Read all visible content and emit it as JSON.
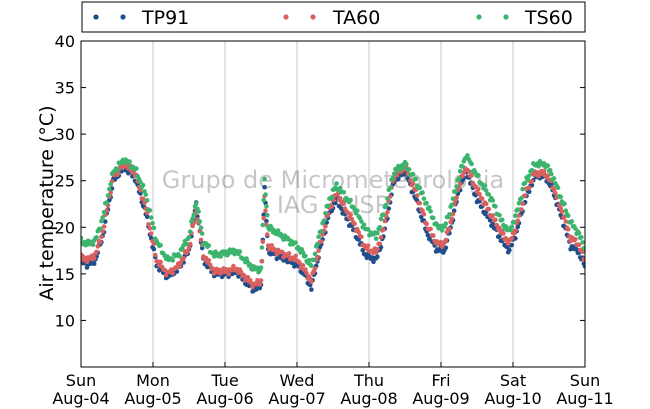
{
  "chart_data": {
    "type": "scatter",
    "ylabel": "Air temperature (°C)",
    "ylim": [
      5,
      40
    ],
    "yticks": [
      10,
      15,
      20,
      25,
      30,
      35,
      40
    ],
    "x_range_days": [
      0,
      7
    ],
    "xticks": [
      {
        "day": "Sun",
        "date": "Aug-04"
      },
      {
        "day": "Mon",
        "date": "Aug-05"
      },
      {
        "day": "Tue",
        "date": "Aug-06"
      },
      {
        "day": "Wed",
        "date": "Aug-07"
      },
      {
        "day": "Thu",
        "date": "Aug-08"
      },
      {
        "day": "Fri",
        "date": "Aug-09"
      },
      {
        "day": "Sat",
        "date": "Aug-10"
      },
      {
        "day": "Sun",
        "date": "Aug-11"
      }
    ],
    "grid": "vertical",
    "legend_position": "top",
    "watermark": [
      "Grupo de Micrometeorologia",
      "IAG / USP"
    ],
    "series": [
      {
        "name": "TP91",
        "color": "#1f4e8c",
        "points": [
          [
            0.0,
            16.3
          ],
          [
            0.1,
            16.0
          ],
          [
            0.2,
            16.5
          ],
          [
            0.3,
            19.0
          ],
          [
            0.45,
            25.0
          ],
          [
            0.6,
            26.5
          ],
          [
            0.75,
            25.3
          ],
          [
            0.9,
            21.5
          ],
          [
            1.05,
            16.0
          ],
          [
            1.2,
            14.7
          ],
          [
            1.35,
            15.5
          ],
          [
            1.5,
            17.5
          ],
          [
            1.6,
            22.5
          ],
          [
            1.7,
            16.5
          ],
          [
            1.85,
            15.0
          ],
          [
            2.05,
            15.0
          ],
          [
            2.15,
            15.3
          ],
          [
            2.3,
            14.0
          ],
          [
            2.4,
            13.3
          ],
          [
            2.5,
            13.8
          ],
          [
            2.55,
            24.0
          ],
          [
            2.6,
            17.5
          ],
          [
            2.7,
            17.0
          ],
          [
            2.85,
            16.5
          ],
          [
            3.0,
            16.0
          ],
          [
            3.1,
            15.0
          ],
          [
            3.2,
            13.5
          ],
          [
            3.3,
            17.0
          ],
          [
            3.45,
            21.5
          ],
          [
            3.55,
            23.0
          ],
          [
            3.65,
            21.5
          ],
          [
            3.8,
            19.5
          ],
          [
            3.95,
            17.0
          ],
          [
            4.1,
            16.5
          ],
          [
            4.2,
            19.0
          ],
          [
            4.35,
            25.0
          ],
          [
            4.5,
            26.0
          ],
          [
            4.65,
            23.0
          ],
          [
            4.8,
            19.5
          ],
          [
            4.95,
            17.5
          ],
          [
            5.05,
            17.5
          ],
          [
            5.15,
            20.5
          ],
          [
            5.25,
            24.0
          ],
          [
            5.35,
            26.0
          ],
          [
            5.5,
            23.0
          ],
          [
            5.7,
            20.5
          ],
          [
            5.85,
            18.5
          ],
          [
            5.95,
            17.5
          ],
          [
            6.05,
            19.5
          ],
          [
            6.15,
            22.5
          ],
          [
            6.3,
            25.5
          ],
          [
            6.45,
            25.5
          ],
          [
            6.55,
            24.0
          ],
          [
            6.7,
            20.5
          ],
          [
            6.8,
            18.0
          ],
          [
            6.9,
            17.5
          ],
          [
            7.0,
            15.8
          ]
        ]
      },
      {
        "name": "TA60",
        "color": "#d9605f",
        "points": [
          [
            0.0,
            16.8
          ],
          [
            0.1,
            16.5
          ],
          [
            0.2,
            17.0
          ],
          [
            0.3,
            19.5
          ],
          [
            0.45,
            25.5
          ],
          [
            0.6,
            26.8
          ],
          [
            0.75,
            25.8
          ],
          [
            0.9,
            22.0
          ],
          [
            1.05,
            16.5
          ],
          [
            1.2,
            15.0
          ],
          [
            1.35,
            15.8
          ],
          [
            1.5,
            17.8
          ],
          [
            1.6,
            22.0
          ],
          [
            1.7,
            17.0
          ],
          [
            1.85,
            15.3
          ],
          [
            2.05,
            15.3
          ],
          [
            2.15,
            15.6
          ],
          [
            2.3,
            14.5
          ],
          [
            2.4,
            13.8
          ],
          [
            2.5,
            14.2
          ],
          [
            2.55,
            23.0
          ],
          [
            2.6,
            18.0
          ],
          [
            2.7,
            17.5
          ],
          [
            2.85,
            17.0
          ],
          [
            3.0,
            16.5
          ],
          [
            3.1,
            15.5
          ],
          [
            3.2,
            14.2
          ],
          [
            3.3,
            17.5
          ],
          [
            3.45,
            22.0
          ],
          [
            3.55,
            23.8
          ],
          [
            3.65,
            22.3
          ],
          [
            3.8,
            20.3
          ],
          [
            3.95,
            17.8
          ],
          [
            4.1,
            17.3
          ],
          [
            4.2,
            19.8
          ],
          [
            4.35,
            25.5
          ],
          [
            4.5,
            26.5
          ],
          [
            4.65,
            23.8
          ],
          [
            4.8,
            20.3
          ],
          [
            4.95,
            18.2
          ],
          [
            5.05,
            18.3
          ],
          [
            5.15,
            21.0
          ],
          [
            5.25,
            24.5
          ],
          [
            5.35,
            26.5
          ],
          [
            5.5,
            24.0
          ],
          [
            5.7,
            21.3
          ],
          [
            5.85,
            19.3
          ],
          [
            5.95,
            18.3
          ],
          [
            6.05,
            20.2
          ],
          [
            6.15,
            23.2
          ],
          [
            6.3,
            25.8
          ],
          [
            6.45,
            25.8
          ],
          [
            6.55,
            24.5
          ],
          [
            6.7,
            21.3
          ],
          [
            6.8,
            18.8
          ],
          [
            6.9,
            18.3
          ],
          [
            7.0,
            16.5
          ]
        ]
      },
      {
        "name": "TS60",
        "color": "#3cb46e",
        "points": [
          [
            0.0,
            18.5
          ],
          [
            0.1,
            18.2
          ],
          [
            0.2,
            18.6
          ],
          [
            0.3,
            21.0
          ],
          [
            0.45,
            26.0
          ],
          [
            0.6,
            27.3
          ],
          [
            0.75,
            26.3
          ],
          [
            0.9,
            23.5
          ],
          [
            1.05,
            18.5
          ],
          [
            1.2,
            16.5
          ],
          [
            1.35,
            17.0
          ],
          [
            1.5,
            19.0
          ],
          [
            1.6,
            22.8
          ],
          [
            1.7,
            18.5
          ],
          [
            1.85,
            17.0
          ],
          [
            2.05,
            17.3
          ],
          [
            2.15,
            17.5
          ],
          [
            2.3,
            16.3
          ],
          [
            2.4,
            15.5
          ],
          [
            2.5,
            15.5
          ],
          [
            2.55,
            25.0
          ],
          [
            2.6,
            20.0
          ],
          [
            2.7,
            19.5
          ],
          [
            2.85,
            18.8
          ],
          [
            3.0,
            18.0
          ],
          [
            3.1,
            17.0
          ],
          [
            3.2,
            15.8
          ],
          [
            3.3,
            18.8
          ],
          [
            3.45,
            23.0
          ],
          [
            3.55,
            24.5
          ],
          [
            3.65,
            23.5
          ],
          [
            3.8,
            22.0
          ],
          [
            3.95,
            19.8
          ],
          [
            4.1,
            19.0
          ],
          [
            4.2,
            21.5
          ],
          [
            4.35,
            26.0
          ],
          [
            4.5,
            26.8
          ],
          [
            4.65,
            25.0
          ],
          [
            4.8,
            22.5
          ],
          [
            4.95,
            20.0
          ],
          [
            5.05,
            20.0
          ],
          [
            5.15,
            22.5
          ],
          [
            5.25,
            25.5
          ],
          [
            5.35,
            27.8
          ],
          [
            5.5,
            25.5
          ],
          [
            5.7,
            23.0
          ],
          [
            5.85,
            20.5
          ],
          [
            5.95,
            19.5
          ],
          [
            6.05,
            21.5
          ],
          [
            6.15,
            24.5
          ],
          [
            6.3,
            26.8
          ],
          [
            6.45,
            26.8
          ],
          [
            6.55,
            25.5
          ],
          [
            6.7,
            22.5
          ],
          [
            6.8,
            20.5
          ],
          [
            6.9,
            19.5
          ],
          [
            7.0,
            17.8
          ]
        ]
      }
    ]
  }
}
